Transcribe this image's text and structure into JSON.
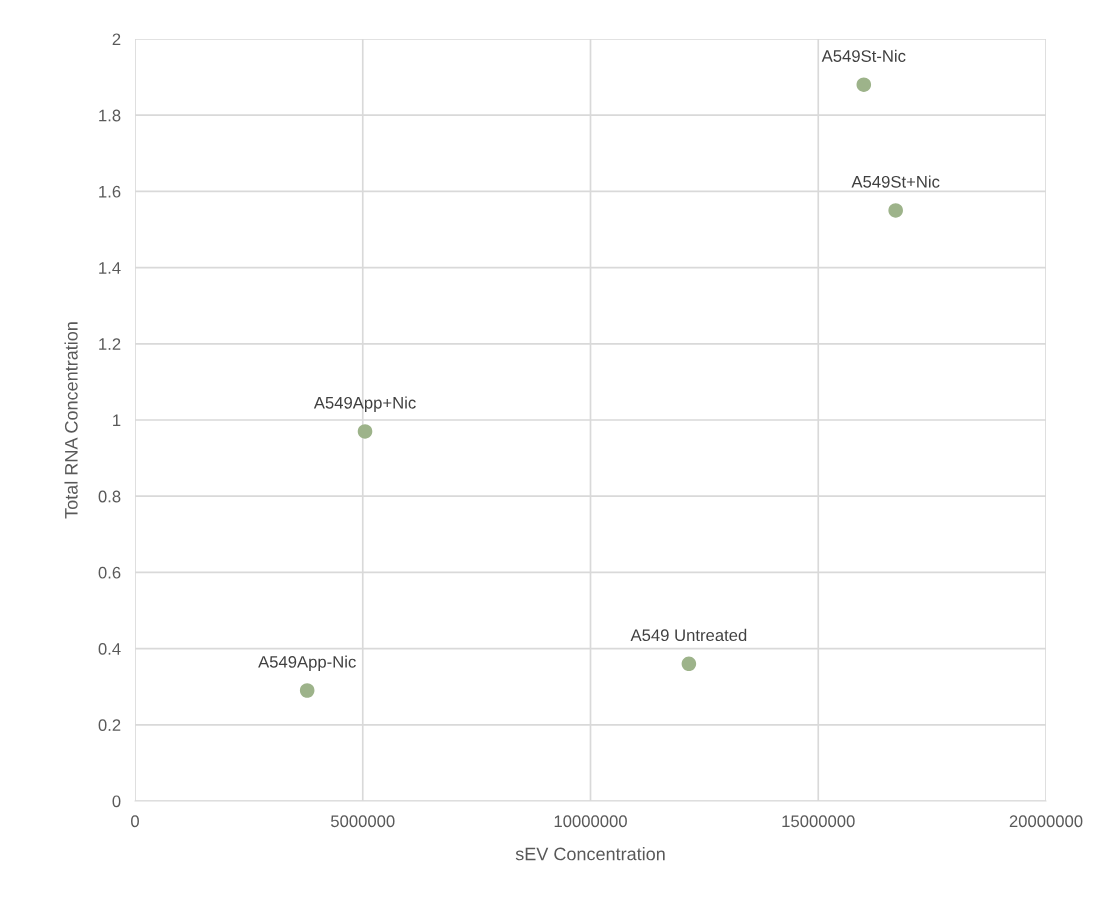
{
  "chart_data": {
    "type": "scatter",
    "xlabel": "sEV Concentration",
    "ylabel": "Total RNA Concentration",
    "x": [
      16000000,
      16700000,
      5050000,
      12160000,
      3780000
    ],
    "series": [
      {
        "color": "#9db38a",
        "values": [
          1.88,
          1.55,
          0.97,
          0.36,
          0.29
        ]
      }
    ],
    "annotations": [
      {
        "text": "A549St-Nic",
        "x": 16000000,
        "y": 1.88
      },
      {
        "text": "A549St+Nic",
        "x": 16700000,
        "y": 1.55
      },
      {
        "text": "A549App+Nic",
        "x": 5050000,
        "y": 0.97
      },
      {
        "text": "A549 Untreated",
        "x": 12160000,
        "y": 0.36
      },
      {
        "text": "A549App-Nic",
        "x": 3780000,
        "y": 0.29
      }
    ],
    "xlim": [
      0,
      20000000
    ],
    "xticks": [
      0,
      5000000,
      10000000,
      15000000,
      20000000
    ],
    "ylim": [
      0,
      2
    ],
    "yticks": [
      0,
      0.2,
      0.4,
      0.6,
      0.8,
      1,
      1.2,
      1.4,
      1.6,
      1.8,
      2
    ],
    "grid": true,
    "marker": "circle"
  }
}
